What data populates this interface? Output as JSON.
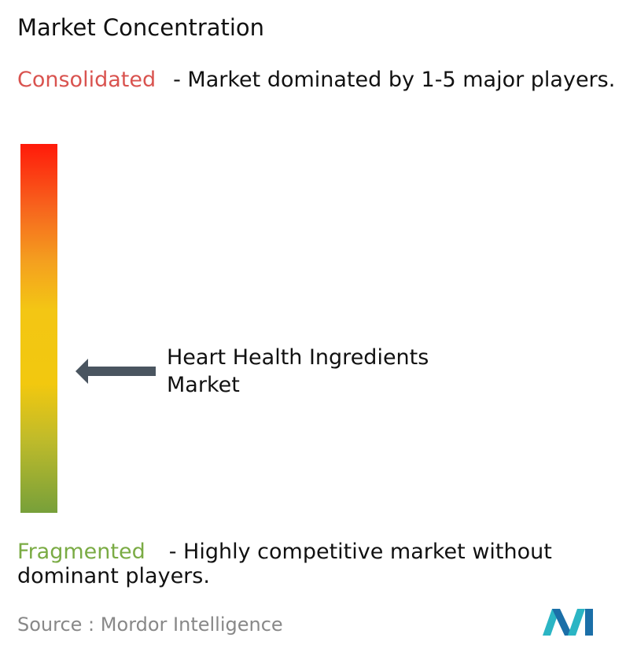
{
  "header": {
    "title": "Market Concentration"
  },
  "scale": {
    "top": {
      "label": "Consolidated",
      "description": "- Market dominated by 1-5 major players."
    },
    "bottom": {
      "label": "Fragmented",
      "description": "- Highly competitive market without dominant players."
    }
  },
  "marker": {
    "label": "Heart Health Ingredients Market"
  },
  "footer": {
    "source_label": "Source :",
    "source": "Mordor Intelligence"
  }
}
